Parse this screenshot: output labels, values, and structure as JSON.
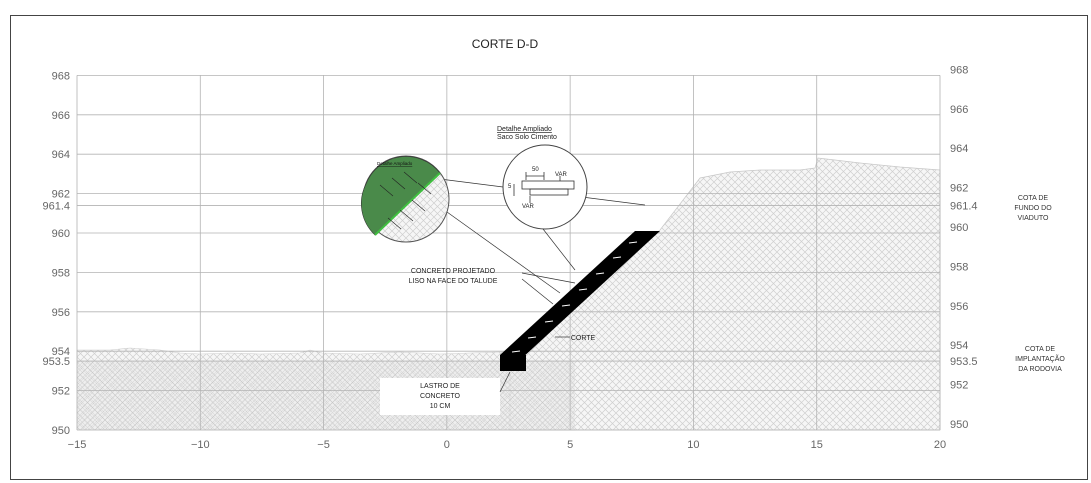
{
  "title": "CORTE D-D",
  "axes": {
    "x_ticks": [
      "−15",
      "−10",
      "−5",
      "0",
      "5",
      "10",
      "15",
      "20"
    ],
    "y_ticks_left": [
      "968",
      "966",
      "964",
      "962",
      "961.4",
      "960",
      "958",
      "956",
      "954",
      "953.5",
      "952",
      "950"
    ],
    "y_ticks_right": [
      "968",
      "966",
      "964",
      "962",
      "961.4",
      "960",
      "958",
      "956",
      "954",
      "953.5",
      "952",
      "950"
    ]
  },
  "labels": {
    "viaduct_level": [
      "COTA DE",
      "FUNDO DO",
      "VIADUTO"
    ],
    "road_level": [
      "COTA DE",
      "IMPLANTAÇÃO",
      "DA RODOVIA"
    ],
    "shotcrete": [
      "CONCRETO PROJETADO",
      "LISO NA FACE DO TALUDE"
    ],
    "cut": "CORTE",
    "lean_concrete": [
      "LASTRO DE",
      "CONCRETO",
      "10 CM"
    ],
    "detail_right_title": "Detalhe Ampliado",
    "detail_right_subtitle": "Saco Solo Cimento",
    "detail_right_dims": [
      "50",
      "VAR",
      "5",
      "VAR"
    ],
    "detail_left_title": "Detalhe Ampliado"
  },
  "colors": {
    "grid": "#b3b3b3",
    "soil_hatch": "#d8d8d8",
    "wall": "#000000",
    "detail_green": "#4a8a4a"
  }
}
